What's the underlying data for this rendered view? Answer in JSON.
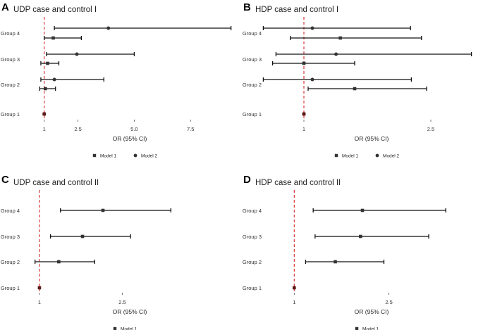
{
  "chart_data": [
    {
      "type": "forest",
      "panel": "A",
      "title": "UDP case and control I",
      "xlabel": "OR (95% CI)",
      "xlim": [
        0.1,
        9.5
      ],
      "xticks": [
        1,
        2.5,
        5.0,
        7.5
      ],
      "xtick_labels": [
        "1",
        "2.5",
        "5.0",
        "7.5"
      ],
      "reference_line": 1,
      "categories": [
        "Group 1",
        "Group 2",
        "Group 3",
        "Group 4"
      ],
      "legend": [
        "Model 1",
        "Model 2"
      ],
      "series": [
        {
          "name": "Model 1",
          "marker": "square",
          "points": [
            {
              "group": "Group 1",
              "or": 1.0,
              "lo": 1.0,
              "hi": 1.0
            },
            {
              "group": "Group 2",
              "or": 1.05,
              "lo": 0.8,
              "hi": 1.5
            },
            {
              "group": "Group 3",
              "or": 1.15,
              "lo": 0.85,
              "hi": 1.65
            },
            {
              "group": "Group 4",
              "or": 1.4,
              "lo": 1.0,
              "hi": 2.65
            }
          ]
        },
        {
          "name": "Model 2",
          "marker": "circle",
          "points": [
            {
              "group": "Group 1",
              "or": 1.0,
              "lo": 1.0,
              "hi": 1.0
            },
            {
              "group": "Group 2",
              "or": 1.45,
              "lo": 0.85,
              "hi": 3.65
            },
            {
              "group": "Group 3",
              "or": 2.45,
              "lo": 1.1,
              "hi": 5.0
            },
            {
              "group": "Group 4",
              "or": 3.85,
              "lo": 1.45,
              "hi": 9.3
            }
          ]
        }
      ]
    },
    {
      "type": "forest",
      "panel": "B",
      "title": "HDP case and control I",
      "xlabel": "OR (95% CI)",
      "xlim": [
        0.55,
        3.05
      ],
      "xticks": [
        1,
        2.5
      ],
      "xtick_labels": [
        "1",
        "2.5"
      ],
      "reference_line": 1,
      "categories": [
        "Group 1",
        "Group 2",
        "Group 3",
        "Group 4"
      ],
      "legend": [
        "Model 1",
        "Model 2"
      ],
      "series": [
        {
          "name": "Model 1",
          "marker": "square",
          "points": [
            {
              "group": "Group 1",
              "or": 1.0,
              "lo": 1.0,
              "hi": 1.0
            },
            {
              "group": "Group 2",
              "or": 1.6,
              "lo": 1.05,
              "hi": 2.45
            },
            {
              "group": "Group 3",
              "or": 1.0,
              "lo": 0.63,
              "hi": 1.6
            },
            {
              "group": "Group 4",
              "or": 1.43,
              "lo": 0.84,
              "hi": 2.39
            }
          ]
        },
        {
          "name": "Model 2",
          "marker": "circle",
          "points": [
            {
              "group": "Group 1",
              "or": 1.0,
              "lo": 1.0,
              "hi": 1.0
            },
            {
              "group": "Group 2",
              "or": 1.1,
              "lo": 0.52,
              "hi": 2.27
            },
            {
              "group": "Group 3",
              "or": 1.38,
              "lo": 0.67,
              "hi": 2.98
            },
            {
              "group": "Group 4",
              "or": 1.1,
              "lo": 0.52,
              "hi": 2.26
            }
          ]
        }
      ]
    },
    {
      "type": "forest",
      "panel": "C",
      "title": "UDP case and control II",
      "xlabel": "OR (95% CI)",
      "xlim": [
        0.72,
        4.55
      ],
      "xticks": [
        1,
        2.5
      ],
      "xtick_labels": [
        "1",
        "2.5"
      ],
      "reference_line": 1,
      "categories": [
        "Group 1",
        "Group 2",
        "Group 3",
        "Group 4"
      ],
      "legend": [
        "Model 1"
      ],
      "series": [
        {
          "name": "Model 1",
          "marker": "square",
          "points": [
            {
              "group": "Group 1",
              "or": 1.0,
              "lo": 1.0,
              "hi": 1.0
            },
            {
              "group": "Group 2",
              "or": 1.35,
              "lo": 0.92,
              "hi": 2.0
            },
            {
              "group": "Group 3",
              "or": 1.78,
              "lo": 1.2,
              "hi": 2.65
            },
            {
              "group": "Group 4",
              "or": 2.15,
              "lo": 1.38,
              "hi": 3.38
            }
          ]
        }
      ]
    },
    {
      "type": "forest",
      "panel": "D",
      "title": "HDP case and control II",
      "xlabel": "OR (95% CI)",
      "xlim": [
        0.55,
        3.9
      ],
      "xticks": [
        1,
        2.5
      ],
      "xtick_labels": [
        "1",
        "2.5"
      ],
      "reference_line": 1,
      "categories": [
        "Group 1",
        "Group 2",
        "Group 3",
        "Group 4"
      ],
      "legend": [
        "Model 1"
      ],
      "series": [
        {
          "name": "Model 1",
          "marker": "square",
          "points": [
            {
              "group": "Group 1",
              "or": 1.0,
              "lo": 1.0,
              "hi": 1.0
            },
            {
              "group": "Group 2",
              "or": 1.65,
              "lo": 1.18,
              "hi": 2.42
            },
            {
              "group": "Group 3",
              "or": 2.05,
              "lo": 1.33,
              "hi": 3.13
            },
            {
              "group": "Group 4",
              "or": 2.08,
              "lo": 1.3,
              "hi": 3.4
            }
          ]
        }
      ]
    }
  ]
}
